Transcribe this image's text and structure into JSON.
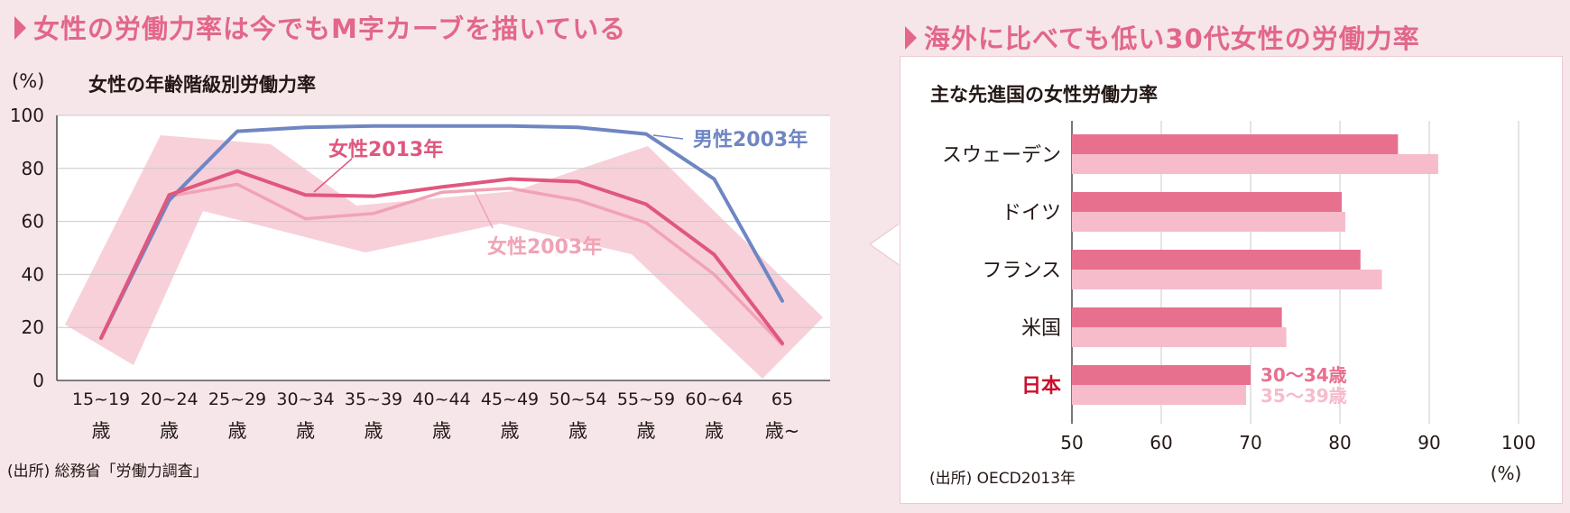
{
  "left_heading": "女性の労働力率は今でもM字カーブを描いている",
  "right_heading": "海外に比べても低い30代女性の労働力率",
  "colors": {
    "accent": "#e2678a",
    "male_line": "#6f86c2",
    "female_2013_line": "#e0577e",
    "female_2003_line": "#f1a3b6",
    "band": "#f6c4d0",
    "bar_dark": "#e8708f",
    "bar_light": "#f6bccb",
    "japan_label": "#c8102e"
  },
  "chart_data": [
    {
      "type": "line",
      "title": "女性の年齢階級別労働力率",
      "ylabel": "(%)",
      "ylim": [
        0,
        100
      ],
      "yticks": [
        "100",
        "80",
        "60",
        "40",
        "20",
        "0"
      ],
      "categories": [
        {
          "top": "15~19",
          "bottom": "歳"
        },
        {
          "top": "20~24",
          "bottom": "歳"
        },
        {
          "top": "25~29",
          "bottom": "歳"
        },
        {
          "top": "30~34",
          "bottom": "歳"
        },
        {
          "top": "35~39",
          "bottom": "歳"
        },
        {
          "top": "40~44",
          "bottom": "歳"
        },
        {
          "top": "45~49",
          "bottom": "歳"
        },
        {
          "top": "50~54",
          "bottom": "歳"
        },
        {
          "top": "55~59",
          "bottom": "歳"
        },
        {
          "top": "60~64",
          "bottom": "歳"
        },
        {
          "top": "65",
          "bottom": "歳~"
        }
      ],
      "series": [
        {
          "name": "男性2003年",
          "values": [
            16,
            68,
            94,
            95.5,
            96,
            96,
            96,
            95.5,
            93,
            76,
            30
          ]
        },
        {
          "name": "女性2013年",
          "values": [
            16,
            70,
            79,
            70,
            69.5,
            73,
            76,
            75,
            66.5,
            47.5,
            14
          ]
        },
        {
          "name": "女性2003年",
          "values": [
            16,
            69.5,
            74,
            61,
            63,
            71,
            72.5,
            68,
            59.5,
            40,
            13.5
          ]
        }
      ],
      "grid": true,
      "source": "(出所) 総務省「労働力調査」"
    },
    {
      "type": "bar",
      "orientation": "horizontal",
      "title": "主な先進国の女性労働力率",
      "categories": [
        "スウェーデン",
        "ドイツ",
        "フランス",
        "米国",
        "日本"
      ],
      "series": [
        {
          "name": "30〜34歳",
          "values": [
            86.5,
            80.2,
            82.3,
            73.5,
            70
          ]
        },
        {
          "name": "35〜39歳",
          "values": [
            91,
            80.6,
            84.7,
            74,
            69.5
          ]
        }
      ],
      "xlim": [
        50,
        100
      ],
      "xticks": [
        "50",
        "60",
        "70",
        "80",
        "90",
        "100"
      ],
      "xlabel": "(%)",
      "grid": true,
      "source": "(出所) OECD2013年"
    }
  ]
}
